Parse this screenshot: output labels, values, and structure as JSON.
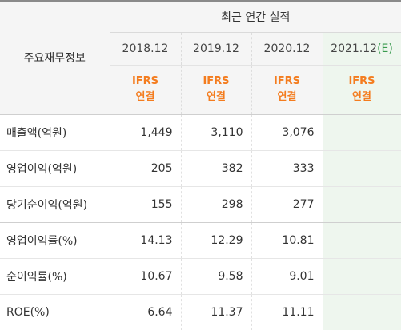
{
  "header": {
    "left_title": "주요재무정보",
    "group_title": "최근 연간 실적",
    "years": [
      "2018.12",
      "2019.12",
      "2020.12"
    ],
    "estimate_year": "2021.12",
    "estimate_mark": "(E)",
    "ifrs_line1": "IFRS",
    "ifrs_line2": "연결"
  },
  "rows": [
    {
      "label": "매출액(억원)",
      "values": [
        "1,449",
        "3,110",
        "3,076",
        ""
      ]
    },
    {
      "label": "영업이익(억원)",
      "values": [
        "205",
        "382",
        "333",
        ""
      ]
    },
    {
      "label": "당기순이익(억원)",
      "values": [
        "155",
        "298",
        "277",
        ""
      ]
    },
    {
      "label": "영업이익률(%)",
      "values": [
        "14.13",
        "12.29",
        "10.81",
        ""
      ]
    },
    {
      "label": "순이익률(%)",
      "values": [
        "10.67",
        "9.58",
        "9.01",
        ""
      ]
    },
    {
      "label": "ROE(%)",
      "values": [
        "6.64",
        "11.37",
        "11.11",
        ""
      ]
    }
  ],
  "colors": {
    "ifrs_orange": "#f47c1e",
    "estimate_green": "#3a9b4f",
    "estimate_bg": "#eef6ee"
  }
}
